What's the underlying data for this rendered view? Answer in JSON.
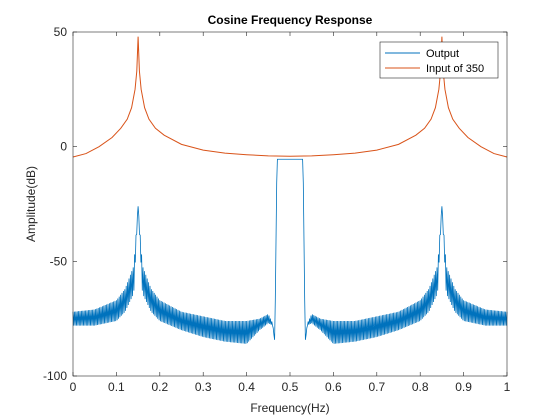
{
  "chart_data": {
    "type": "line",
    "title": "Cosine Frequency Response",
    "xlabel": "Frequency(Hz)",
    "ylabel": "Amplitude(dB)",
    "xlim": [
      0,
      1
    ],
    "ylim": [
      -100,
      50
    ],
    "xticks": [
      0,
      0.1,
      0.2,
      0.3,
      0.4,
      0.5,
      0.6,
      0.7,
      0.8,
      0.9,
      1
    ],
    "xtick_labels": [
      "0",
      "0.1",
      "0.2",
      "0.3",
      "0.4",
      "0.5",
      "0.6",
      "0.7",
      "0.8",
      "0.9",
      "1"
    ],
    "yticks": [
      -100,
      -50,
      0,
      50
    ],
    "ytick_labels": [
      "-100",
      "-50",
      "0",
      "50"
    ],
    "grid": false,
    "legend_position": "top-right",
    "series": [
      {
        "name": "Output",
        "color": "#0072BD",
        "style": "oscillating",
        "envelope": {
          "x": [
            0,
            0.05,
            0.1,
            0.12,
            0.14,
            0.15,
            0.16,
            0.18,
            0.2,
            0.25,
            0.3,
            0.35,
            0.4,
            0.43,
            0.45,
            0.46,
            0.465,
            0.47,
            0.5,
            0.53,
            0.535,
            0.54,
            0.55,
            0.57,
            0.6,
            0.65,
            0.7,
            0.75,
            0.8,
            0.82,
            0.84,
            0.85,
            0.86,
            0.88,
            0.9,
            0.95,
            1
          ],
          "upper": [
            -72,
            -71,
            -67,
            -62,
            -52,
            -26,
            -52,
            -62,
            -67,
            -72,
            -74,
            -76,
            -76,
            -75,
            -73,
            -77,
            -85,
            -5.5,
            -5.5,
            -5.5,
            -85,
            -77,
            -73,
            -75,
            -76,
            -76,
            -74,
            -72,
            -67,
            -62,
            -52,
            -26,
            -52,
            -62,
            -67,
            -71,
            -72
          ],
          "lower": [
            -78,
            -78,
            -76,
            -72,
            -64,
            -26,
            -64,
            -72,
            -76,
            -80,
            -83,
            -85,
            -86,
            -80,
            -77,
            -78,
            -85,
            -5.5,
            -5.5,
            -5.5,
            -85,
            -78,
            -77,
            -80,
            -86,
            -85,
            -83,
            -80,
            -76,
            -72,
            -64,
            -26,
            -64,
            -72,
            -76,
            -78,
            -78
          ]
        }
      },
      {
        "name": "Input of 350",
        "color": "#D95319",
        "x": [
          0,
          0.03,
          0.06,
          0.09,
          0.11,
          0.125,
          0.135,
          0.143,
          0.147,
          0.15,
          0.153,
          0.157,
          0.165,
          0.175,
          0.19,
          0.21,
          0.25,
          0.3,
          0.35,
          0.4,
          0.45,
          0.5,
          0.55,
          0.6,
          0.65,
          0.7,
          0.75,
          0.79,
          0.81,
          0.825,
          0.835,
          0.843,
          0.847,
          0.85,
          0.853,
          0.857,
          0.865,
          0.875,
          0.89,
          0.91,
          0.94,
          0.97,
          1
        ],
        "y": [
          -4.5,
          -3,
          0,
          4,
          8,
          12,
          17,
          25,
          33,
          48,
          33,
          25,
          17,
          12,
          8,
          5,
          1,
          -1.5,
          -2.8,
          -3.5,
          -4,
          -4.2,
          -4,
          -3.5,
          -2.8,
          -1.5,
          1,
          5,
          8,
          12,
          17,
          25,
          33,
          48,
          33,
          25,
          17,
          12,
          8,
          4,
          0,
          -3,
          -4.5
        ]
      }
    ]
  }
}
